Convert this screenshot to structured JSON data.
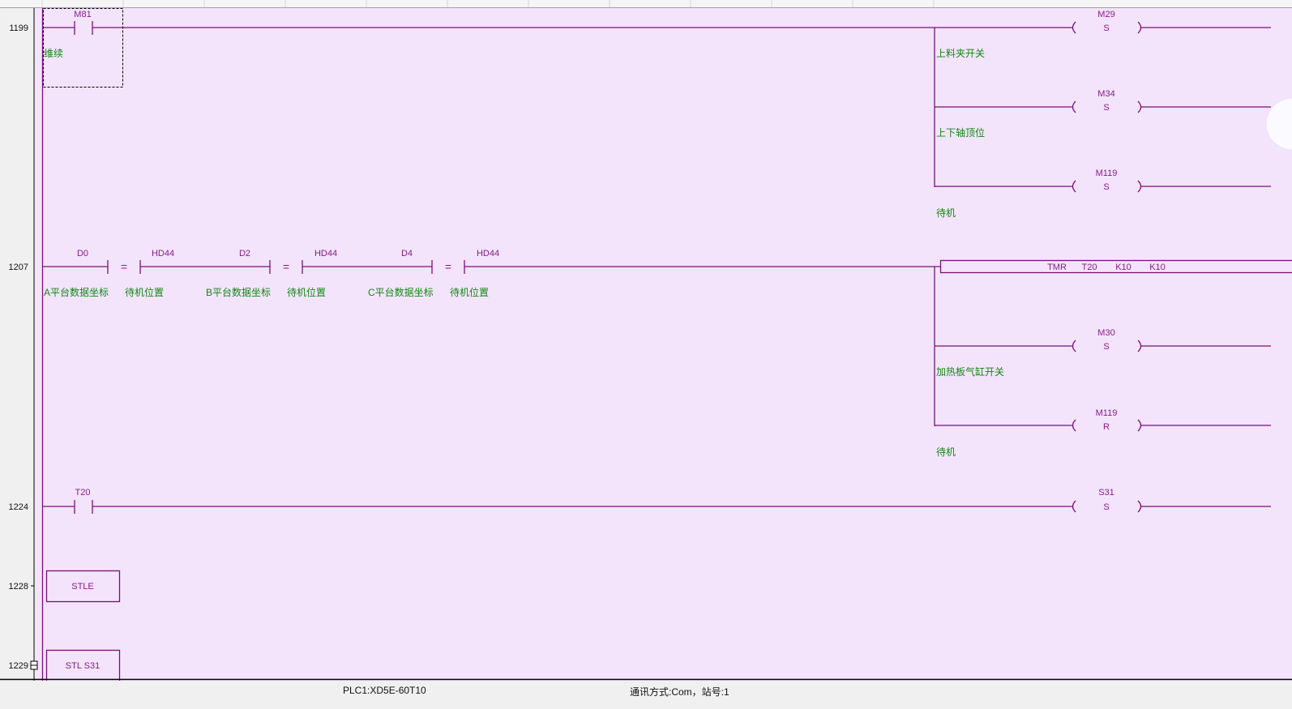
{
  "colors": {
    "canvas": "#f3e4fc",
    "wire": "#7a0f7a",
    "operand": "#8a1a8a",
    "comment": "#118811"
  },
  "rungs": {
    "r1199": {
      "step": "1199",
      "contact": "M81",
      "contact_comment": "维续",
      "coils": [
        {
          "operand": "M29",
          "op": "S",
          "comment": "上料夹开关"
        },
        {
          "operand": "M34",
          "op": "S",
          "comment": "上下轴顶位"
        },
        {
          "operand": "M119",
          "op": "S",
          "comment": "待机"
        }
      ]
    },
    "r1207": {
      "step": "1207",
      "compares": [
        {
          "left": "D0",
          "left_comment": "A平台数据坐标",
          "op": "=",
          "right": "HD44",
          "right_comment": "待机位置"
        },
        {
          "left": "D2",
          "left_comment": "B平台数据坐标",
          "op": "=",
          "right": "HD44",
          "right_comment": "待机位置"
        },
        {
          "left": "D4",
          "left_comment": "C平台数据坐标",
          "op": "=",
          "right": "HD44",
          "right_comment": "待机位置"
        }
      ],
      "timer": {
        "instr": "TMR",
        "t": "T20",
        "k1": "K10",
        "k2": "K10"
      },
      "coils": [
        {
          "operand": "M30",
          "op": "S",
          "comment": "加热板气缸开关"
        },
        {
          "operand": "M119",
          "op": "R",
          "comment": "待机"
        }
      ]
    },
    "r1224": {
      "step": "1224",
      "contact": "T20",
      "coil": {
        "operand": "S31",
        "op": "S"
      }
    },
    "r1228": {
      "step": "1228",
      "instr": "STLE"
    },
    "r1229": {
      "step": "1229",
      "instr": "STL S31"
    }
  },
  "status": {
    "plc": "PLC1:XD5E-60T10",
    "comm": "通讯方式:Com，站号:1"
  }
}
